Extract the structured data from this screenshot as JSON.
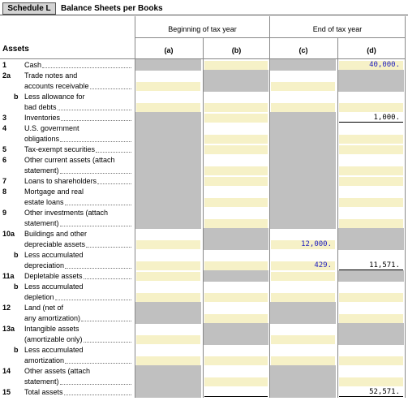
{
  "header": {
    "badge": "Schedule L",
    "title": "Balance Sheets per Books"
  },
  "columns": {
    "section": "Assets",
    "beginning": "Beginning of tax year",
    "end": "End of tax year",
    "letters": {
      "a": "(a)",
      "b": "(b)",
      "c": "(c)",
      "d": "(d)"
    }
  },
  "rows": [
    {
      "line": "1",
      "label": [
        "Cash"
      ],
      "values": {
        "d": "40,000."
      }
    },
    {
      "line": "2a",
      "label": [
        "Trade notes and",
        "accounts receivable"
      ],
      "values": {}
    },
    {
      "line": "b",
      "label": [
        "Less allowance for",
        "bad debts"
      ],
      "values": {}
    },
    {
      "line": "3",
      "label": [
        "Inventories"
      ],
      "values": {
        "d": "1,000."
      }
    },
    {
      "line": "4",
      "label": [
        "U.S. government",
        "obligations"
      ],
      "values": {}
    },
    {
      "line": "5",
      "label": [
        "Tax-exempt securities"
      ],
      "values": {}
    },
    {
      "line": "6",
      "label": [
        "Other current assets (attach",
        "statement)"
      ],
      "values": {}
    },
    {
      "line": "7",
      "label": [
        "Loans to shareholders"
      ],
      "values": {}
    },
    {
      "line": "8",
      "label": [
        "Mortgage and real",
        "estate loans"
      ],
      "values": {}
    },
    {
      "line": "9",
      "label": [
        "Other investments (attach",
        "statement)"
      ],
      "values": {}
    },
    {
      "line": "10a",
      "label": [
        "Buildings and other",
        "depreciable assets"
      ],
      "values": {
        "c": "12,000."
      }
    },
    {
      "line": "b",
      "label": [
        "Less accumulated",
        "depreciation"
      ],
      "values": {
        "c": "429.",
        "d": "11,571."
      }
    },
    {
      "line": "11a",
      "label": [
        "Depletable assets"
      ],
      "values": {}
    },
    {
      "line": "b",
      "label": [
        "Less accumulated",
        "depletion"
      ],
      "values": {}
    },
    {
      "line": "12",
      "label": [
        "Land (net of",
        "any amortization)"
      ],
      "values": {}
    },
    {
      "line": "13a",
      "label": [
        "Intangible assets",
        "(amortizable only)"
      ],
      "values": {}
    },
    {
      "line": "b",
      "label": [
        "Less accumulated",
        "amortization"
      ],
      "values": {}
    },
    {
      "line": "14",
      "label": [
        "Other assets (attach",
        "statement)"
      ],
      "values": {}
    },
    {
      "line": "15",
      "label": [
        "Total assets"
      ],
      "values": {
        "d": "52,571."
      }
    }
  ]
}
